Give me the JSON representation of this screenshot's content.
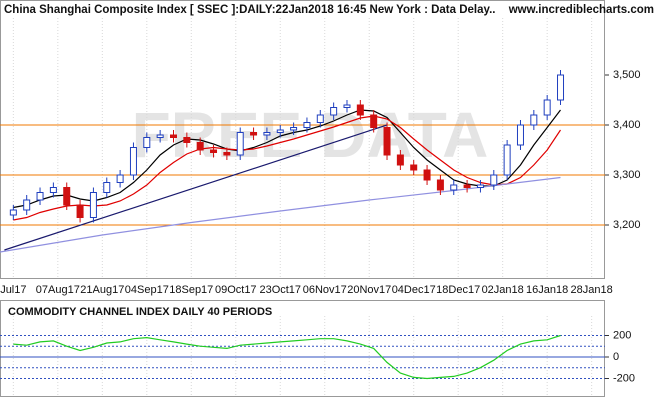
{
  "chart_data": [
    {
      "type": "candlestick",
      "title": "China Shanghai Composite Index [ SSEC ]:DAILY:22Jan2018 16:45 New York : Data Delay..",
      "source": "www.incrediblecharts.com",
      "watermark": "FREE DATA",
      "x": [
        0,
        3,
        6,
        9,
        12,
        15,
        18,
        21,
        24,
        27,
        30,
        33,
        36,
        39,
        42,
        45,
        48,
        51,
        54,
        57,
        60,
        63,
        66,
        69,
        72,
        75,
        78,
        81,
        84,
        87,
        90,
        93,
        96,
        99,
        102,
        105,
        108,
        111,
        114,
        117,
        120,
        123
      ],
      "open": [
        3220,
        3230,
        3250,
        3265,
        3275,
        3240,
        3215,
        3265,
        3285,
        3300,
        3355,
        3375,
        3380,
        3375,
        3365,
        3350,
        3345,
        3340,
        3385,
        3380,
        3385,
        3390,
        3395,
        3405,
        3420,
        3435,
        3440,
        3420,
        3395,
        3340,
        3320,
        3310,
        3290,
        3270,
        3280,
        3275,
        3280,
        3300,
        3360,
        3400,
        3420,
        3450
      ],
      "high": [
        3240,
        3260,
        3275,
        3285,
        3285,
        3250,
        3275,
        3295,
        3310,
        3365,
        3385,
        3390,
        3390,
        3385,
        3375,
        3360,
        3355,
        3395,
        3395,
        3395,
        3400,
        3405,
        3415,
        3430,
        3445,
        3450,
        3450,
        3430,
        3405,
        3350,
        3330,
        3320,
        3300,
        3290,
        3290,
        3290,
        3310,
        3370,
        3410,
        3430,
        3460,
        3510
      ],
      "low": [
        3210,
        3220,
        3240,
        3255,
        3230,
        3205,
        3205,
        3255,
        3275,
        3290,
        3345,
        3365,
        3365,
        3355,
        3340,
        3335,
        3330,
        3330,
        3370,
        3370,
        3375,
        3380,
        3385,
        3395,
        3410,
        3425,
        3410,
        3385,
        3330,
        3310,
        3300,
        3280,
        3260,
        3260,
        3265,
        3265,
        3270,
        3290,
        3350,
        3390,
        3410,
        3440
      ],
      "close": [
        3230,
        3250,
        3265,
        3275,
        3240,
        3215,
        3265,
        3285,
        3300,
        3355,
        3375,
        3380,
        3375,
        3365,
        3350,
        3345,
        3340,
        3385,
        3380,
        3385,
        3390,
        3395,
        3405,
        3420,
        3435,
        3440,
        3420,
        3395,
        3340,
        3320,
        3310,
        3290,
        3270,
        3280,
        3275,
        3280,
        3300,
        3360,
        3400,
        3420,
        3450,
        3500
      ],
      "up_color": "#1f3fbf",
      "down_color": "#d01010",
      "lines": [
        {
          "color": "#000000",
          "x": [
            0,
            3,
            6,
            9,
            12,
            15,
            18,
            21,
            24,
            27,
            30,
            33,
            36,
            39,
            42,
            45,
            48,
            51,
            54,
            57,
            60,
            63,
            66,
            69,
            72,
            75,
            78,
            81,
            84,
            87,
            90,
            93,
            96,
            99,
            102,
            105,
            108,
            111,
            114,
            117,
            120,
            123
          ],
          "values": [
            3235,
            3240,
            3250,
            3258,
            3260,
            3252,
            3248,
            3255,
            3265,
            3285,
            3310,
            3340,
            3360,
            3372,
            3370,
            3362,
            3352,
            3348,
            3355,
            3365,
            3378,
            3385,
            3390,
            3398,
            3408,
            3420,
            3430,
            3428,
            3415,
            3385,
            3355,
            3330,
            3310,
            3290,
            3282,
            3278,
            3278,
            3290,
            3320,
            3360,
            3395,
            3430
          ]
        },
        {
          "color": "#e00000",
          "x": [
            0,
            3,
            6,
            9,
            12,
            15,
            18,
            21,
            24,
            27,
            30,
            33,
            36,
            39,
            42,
            45,
            48,
            51,
            54,
            57,
            60,
            63,
            66,
            69,
            72,
            75,
            78,
            81,
            84,
            87,
            90,
            93,
            96,
            99,
            102,
            105,
            108,
            111,
            114,
            117,
            120,
            123
          ],
          "values": [
            3210,
            3215,
            3225,
            3232,
            3238,
            3240,
            3238,
            3240,
            3248,
            3262,
            3280,
            3305,
            3325,
            3342,
            3352,
            3355,
            3352,
            3350,
            3352,
            3358,
            3365,
            3372,
            3380,
            3388,
            3396,
            3405,
            3414,
            3418,
            3412,
            3395,
            3372,
            3350,
            3330,
            3310,
            3295,
            3285,
            3280,
            3282,
            3295,
            3320,
            3350,
            3390
          ]
        },
        {
          "color": "#9090e0",
          "x": [
            -3,
            20,
            40,
            60,
            80,
            100,
            123
          ],
          "values": [
            3146,
            3180,
            3205,
            3228,
            3250,
            3270,
            3295
          ]
        },
        {
          "color": "#1a1a6e",
          "x": [
            -2,
            84
          ],
          "values": [
            3150,
            3400
          ]
        }
      ],
      "hlines": [
        3400,
        3300,
        3200
      ],
      "hline_color": "#f07800",
      "xlim": [
        -3,
        133
      ],
      "ylim": [
        3094,
        3650
      ],
      "xticks": [
        {
          "value": 0,
          "label": "Jul17"
        },
        {
          "value": 10,
          "label": "07Aug17"
        },
        {
          "value": 20,
          "label": "21Aug17"
        },
        {
          "value": 30,
          "label": "04Sep17"
        },
        {
          "value": 40,
          "label": "18Sep17"
        },
        {
          "value": 50,
          "label": "09Oct17"
        },
        {
          "value": 60,
          "label": "23Oct17"
        },
        {
          "value": 70,
          "label": "06Nov17"
        },
        {
          "value": 80,
          "label": "20Nov17"
        },
        {
          "value": 90,
          "label": "04Dec17"
        },
        {
          "value": 100,
          "label": "18Dec17"
        },
        {
          "value": 110,
          "label": "02Jan18"
        },
        {
          "value": 120,
          "label": "16Jan18"
        },
        {
          "value": 130,
          "label": "28Jan18"
        }
      ],
      "yticks": [
        {
          "value": 3200,
          "label": "3,200"
        },
        {
          "value": 3300,
          "label": "3,300"
        },
        {
          "value": 3400,
          "label": "3,400"
        },
        {
          "value": 3500,
          "label": "3,500"
        }
      ]
    },
    {
      "type": "line",
      "title": "COMMODITY CHANNEL INDEX DAILY 40 PERIODS",
      "color": "#22cc22",
      "x": [
        0,
        3,
        6,
        9,
        12,
        15,
        18,
        21,
        24,
        27,
        30,
        33,
        36,
        39,
        42,
        45,
        48,
        51,
        54,
        57,
        60,
        63,
        66,
        69,
        72,
        75,
        78,
        81,
        84,
        87,
        90,
        93,
        96,
        99,
        102,
        105,
        108,
        111,
        114,
        117,
        120,
        123
      ],
      "values": [
        120,
        110,
        140,
        150,
        100,
        60,
        90,
        130,
        140,
        170,
        180,
        160,
        140,
        120,
        100,
        90,
        80,
        110,
        120,
        130,
        140,
        150,
        160,
        170,
        170,
        150,
        120,
        80,
        -50,
        -150,
        -190,
        -200,
        -190,
        -180,
        -150,
        -100,
        -30,
        60,
        120,
        150,
        160,
        200
      ],
      "levels": [
        200,
        100,
        -100,
        -200
      ],
      "level_color": "#3050c0",
      "xlim": [
        -3,
        133
      ],
      "ylim": [
        -372,
        530
      ],
      "yticks": [
        200,
        0,
        -200
      ]
    }
  ]
}
